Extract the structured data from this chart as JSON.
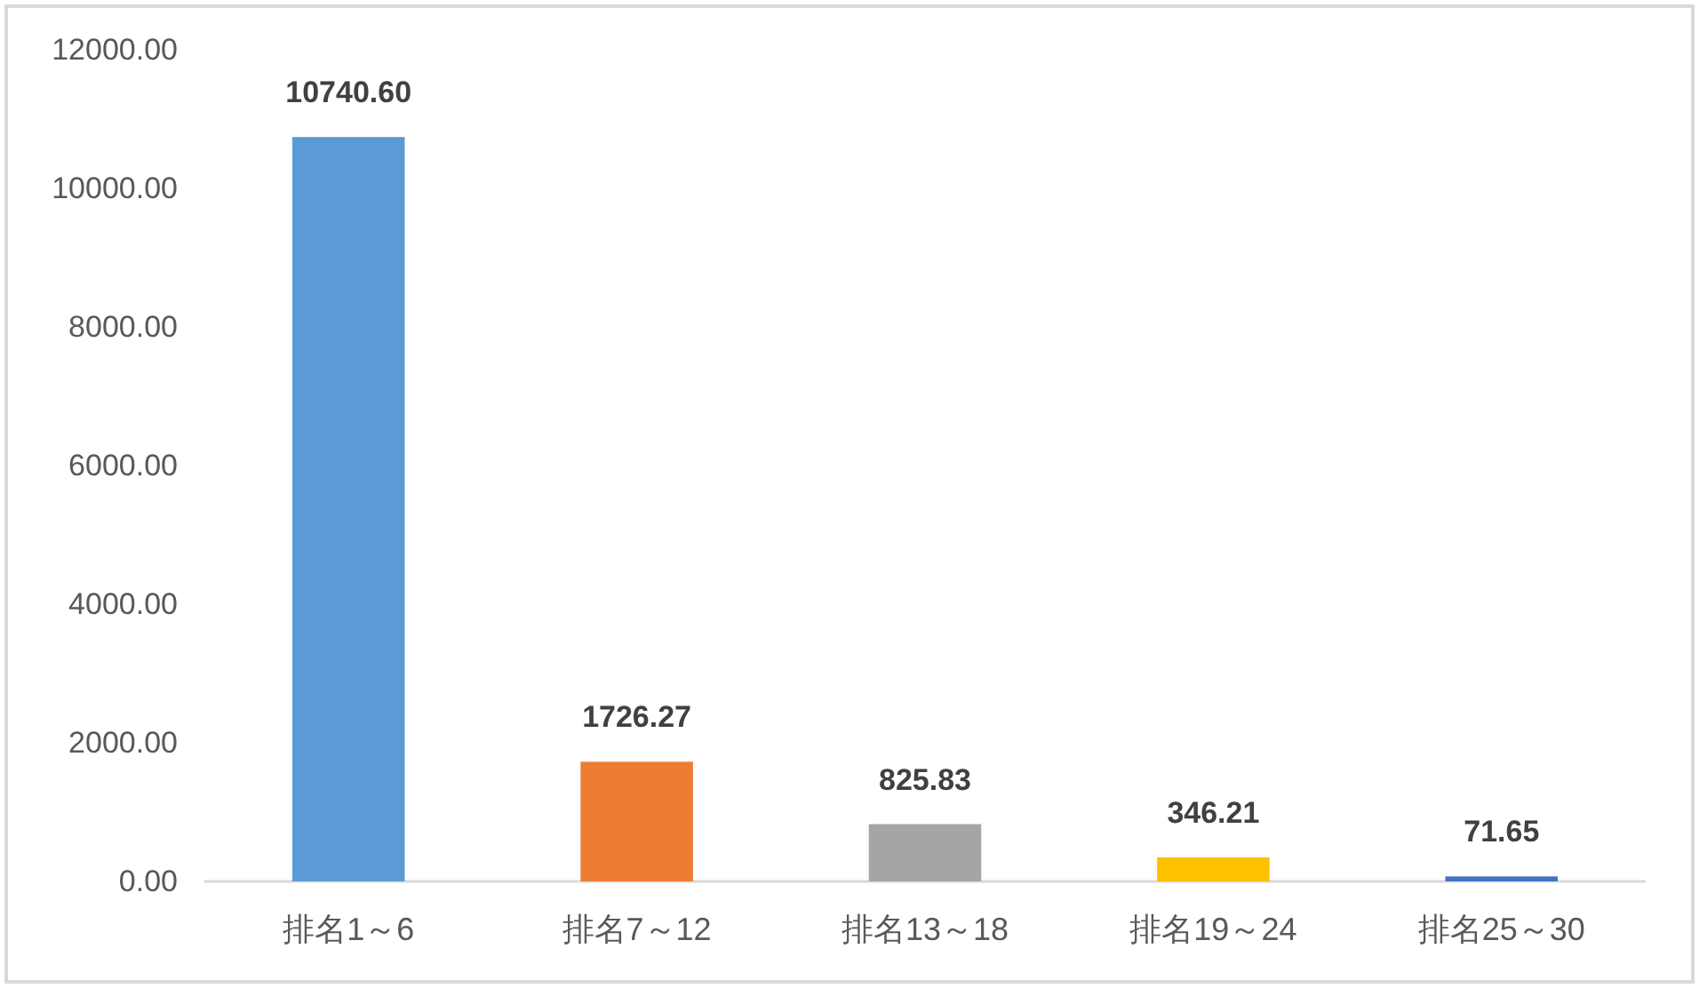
{
  "chart_data": {
    "type": "bar",
    "categories": [
      "排名1～6",
      "排名7～12",
      "排名13～18",
      "排名19～24",
      "排名25～30"
    ],
    "values": [
      10740.6,
      1726.27,
      825.83,
      346.21,
      71.65
    ],
    "colors": [
      "#5b9bd5",
      "#ed7d31",
      "#a5a5a5",
      "#ffc000",
      "#4472c4"
    ],
    "value_labels": [
      "10740.60",
      "1726.27",
      "825.83",
      "346.21",
      "71.65"
    ],
    "ylim": [
      0,
      12000
    ],
    "yticks": [
      {
        "value": 0,
        "label": "0.00"
      },
      {
        "value": 2000,
        "label": "2000.00"
      },
      {
        "value": 4000,
        "label": "4000.00"
      },
      {
        "value": 6000,
        "label": "6000.00"
      },
      {
        "value": 8000,
        "label": "8000.00"
      },
      {
        "value": 10000,
        "label": "10000.00"
      },
      {
        "value": 12000,
        "label": "12000.00"
      }
    ]
  }
}
